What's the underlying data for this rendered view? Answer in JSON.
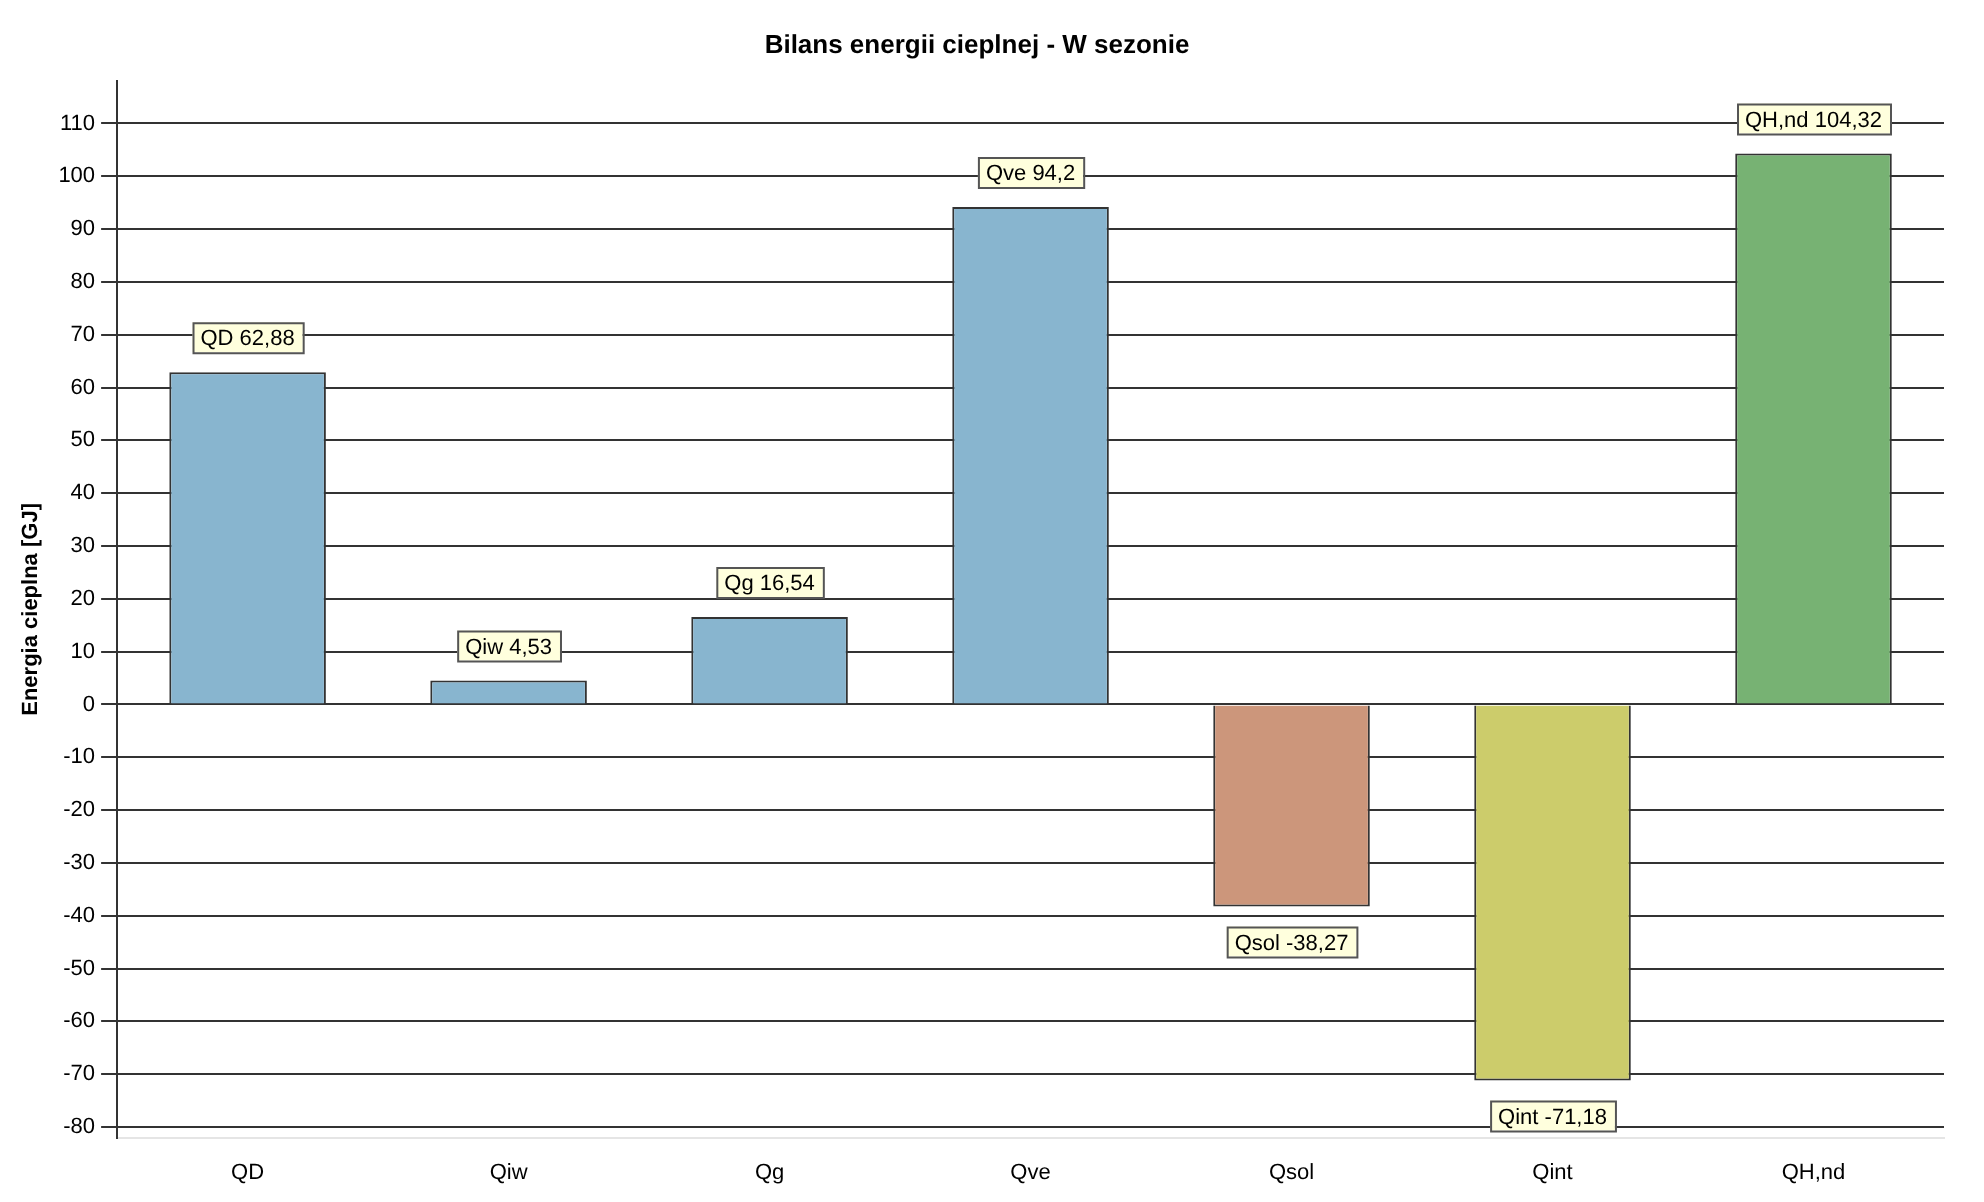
{
  "chart_data": {
    "type": "bar",
    "title": "Bilans energii cieplnej - W sezonie",
    "ylabel": "Energia cieplna [GJ]",
    "categories": [
      "QD",
      "Qiw",
      "Qg",
      "Qve",
      "Qsol",
      "Qint",
      "QH,nd"
    ],
    "values": [
      62.88,
      4.53,
      16.54,
      94.2,
      -38.27,
      -71.18,
      104.32
    ],
    "colors": [
      "#88b5cf",
      "#88b5cf",
      "#88b5cf",
      "#88b5cf",
      "#cc967b",
      "#cccc6b",
      "#77b273"
    ],
    "value_labels": [
      "QD 62,88",
      "Qiw 4,53",
      "Qg 16,54",
      "Qve 94,2",
      "Qsol -38,27",
      "Qint -71,18",
      "QH,nd 104,32"
    ],
    "ylim": [
      -82,
      118
    ],
    "yticks": [
      -80,
      -70,
      -60,
      -50,
      -40,
      -30,
      -20,
      -10,
      0,
      10,
      20,
      30,
      40,
      50,
      60,
      70,
      80,
      90,
      100,
      110
    ],
    "grid": "y",
    "legend": false
  }
}
